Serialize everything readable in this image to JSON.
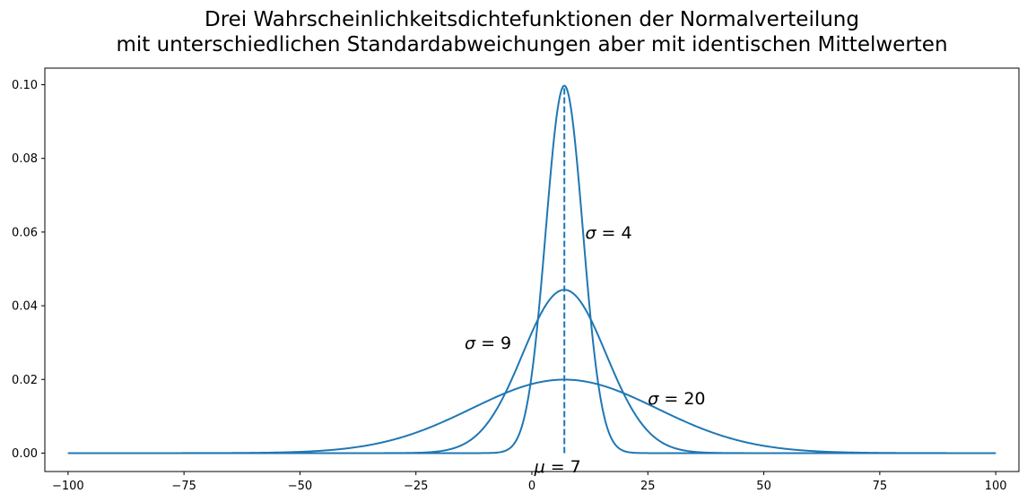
{
  "chart_data": {
    "type": "line",
    "title_lines": [
      "Drei Wahrscheinlichkeitsdichtefunktionen der Normalverteilung",
      "mit unterschiedlichen Standardabweichungen aber mit identischen Mittelwerten"
    ],
    "xlabel": "",
    "ylabel": "",
    "xlim": [
      -105,
      105
    ],
    "ylim": [
      -0.005,
      0.1045
    ],
    "x_ticks": [
      -100,
      -75,
      -50,
      -25,
      0,
      25,
      50,
      75,
      100
    ],
    "x_tick_labels": [
      "−100",
      "−75",
      "−50",
      "−25",
      "0",
      "25",
      "50",
      "75",
      "100"
    ],
    "y_ticks": [
      0.0,
      0.02,
      0.04,
      0.06,
      0.08,
      0.1
    ],
    "y_tick_labels": [
      "0.00",
      "0.02",
      "0.04",
      "0.06",
      "0.08",
      "0.10"
    ],
    "grid": false,
    "legend": "none",
    "color": "#1f77b4",
    "mean": 7,
    "x_range": [
      -100,
      100
    ],
    "series": [
      {
        "distribution": "normal",
        "mu": 7,
        "sigma": 4
      },
      {
        "distribution": "normal",
        "mu": 7,
        "sigma": 9
      },
      {
        "distribution": "normal",
        "mu": 7,
        "sigma": 20
      }
    ],
    "mean_line": {
      "x": 7,
      "y_from": 0,
      "y_to": 0.0997,
      "style": "dashed"
    },
    "annotations": [
      {
        "symbol": "σ",
        "text": " = 4",
        "x": 11.5,
        "y": 0.06
      },
      {
        "symbol": "σ",
        "text": " = 9",
        "x": -14.5,
        "y": 0.03
      },
      {
        "symbol": "σ",
        "text": " = 20",
        "x": 25,
        "y": 0.015
      },
      {
        "symbol": "μ",
        "text": " = 7",
        "x": 0.5,
        "y": -0.0035
      }
    ]
  }
}
